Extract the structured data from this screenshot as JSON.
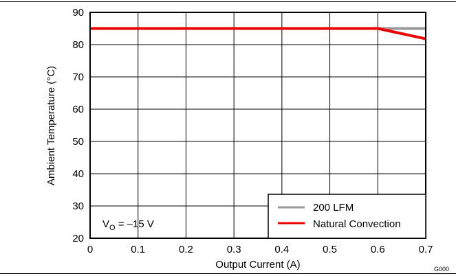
{
  "chart_data": {
    "type": "line",
    "xlabel": "Output Current (A)",
    "ylabel": "Ambient Temperature (°C)",
    "xlim": [
      0,
      0.7
    ],
    "ylim": [
      20,
      90
    ],
    "x_ticks": [
      "0",
      "0.1",
      "0.2",
      "0.3",
      "0.4",
      "0.5",
      "0.6",
      "0.7"
    ],
    "y_ticks": [
      "20",
      "30",
      "40",
      "50",
      "60",
      "70",
      "80",
      "90"
    ],
    "grid": true,
    "legend_position": "bottom-right",
    "annotation": {
      "main": "V",
      "sub": "O",
      "rest": " = –15 V"
    },
    "figure_code": "G000",
    "series": [
      {
        "name": "200 LFM",
        "color": "#999999",
        "x": [
          0,
          0.6,
          0.7
        ],
        "y": [
          85,
          85,
          85
        ]
      },
      {
        "name": "Natural Convection",
        "color": "#ee0000",
        "x": [
          0,
          0.6,
          0.7
        ],
        "y": [
          85,
          85,
          81.8
        ]
      }
    ]
  }
}
